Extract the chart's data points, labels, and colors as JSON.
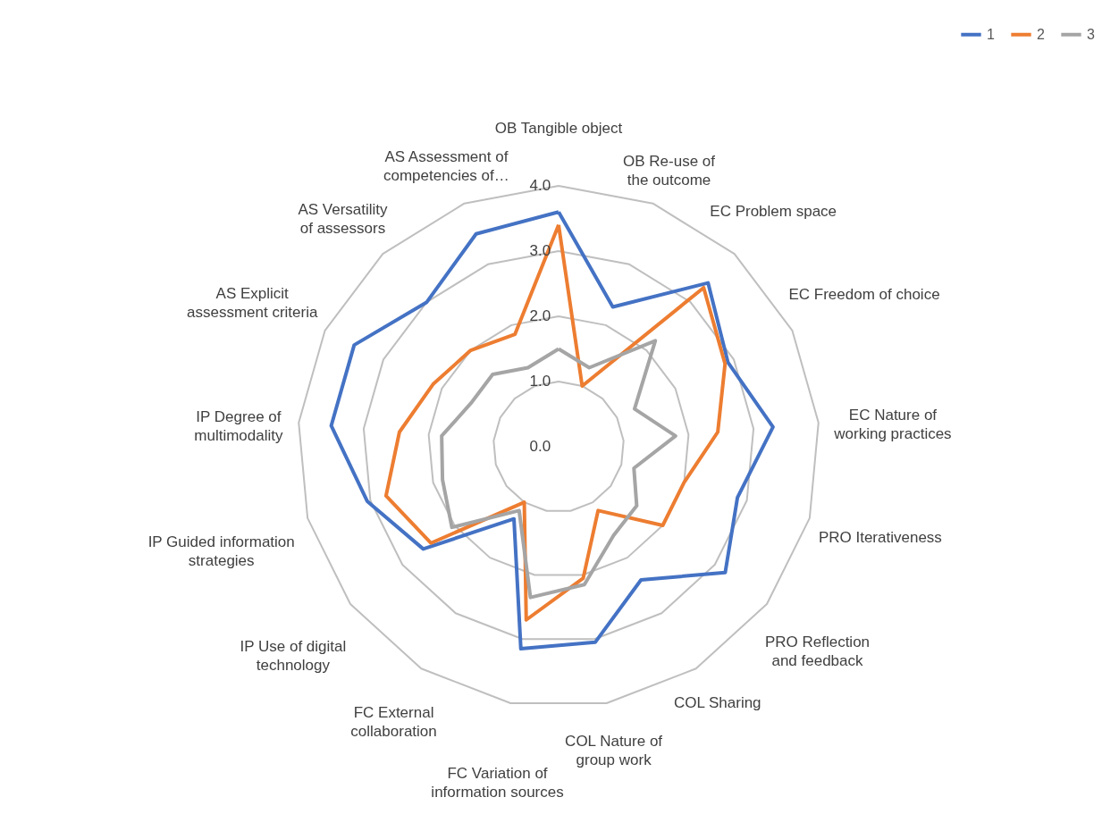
{
  "chart_data": {
    "type": "radar",
    "categories": [
      "OB Tangible object",
      "OB Re-use of the outcome",
      "EC Problem space",
      "EC Freedom of choice",
      "EC Nature of working practices",
      "PRO Iterativeness",
      "PRO Reflection and feedback",
      "COL Sharing",
      "COL Nature of group work",
      "FC Variation of information sources",
      "FC External collaboration",
      "IP Use of digital technology",
      "IP Guided information strategies",
      "IP Degree of multimodality",
      "AS Explicit assessment criteria",
      "AS Versatility of assessors",
      "AS Assessment of competencies of…"
    ],
    "series": [
      {
        "name": "1",
        "color": "#4472c4",
        "values": [
          3.6,
          2.3,
          3.4,
          2.9,
          3.3,
          2.85,
          3.2,
          2.4,
          3.05,
          3.15,
          1.3,
          2.6,
          3.05,
          3.5,
          3.5,
          3.0,
          3.5
        ]
      },
      {
        "name": "2",
        "color": "#ed7d31",
        "values": [
          3.4,
          1.0,
          3.3,
          2.85,
          2.45,
          2.0,
          2.0,
          1.15,
          2.05,
          2.7,
          1.0,
          2.45,
          2.75,
          2.45,
          2.15,
          2.0,
          1.85
        ]
      },
      {
        "name": "3",
        "color": "#a5a5a5",
        "values": [
          1.5,
          1.3,
          2.2,
          1.3,
          1.8,
          1.2,
          1.5,
          1.6,
          2.15,
          2.35,
          1.15,
          2.05,
          1.85,
          1.8,
          1.5,
          1.5,
          1.3
        ]
      }
    ],
    "ylim": [
      0,
      4
    ],
    "yticks": [
      {
        "value": 0,
        "label": "0.0"
      },
      {
        "value": 1,
        "label": "1.0"
      },
      {
        "value": 2,
        "label": "2.0"
      },
      {
        "value": 3,
        "label": "3.0"
      },
      {
        "value": 4,
        "label": "4.0"
      }
    ],
    "grid": true,
    "legend": "top right"
  }
}
